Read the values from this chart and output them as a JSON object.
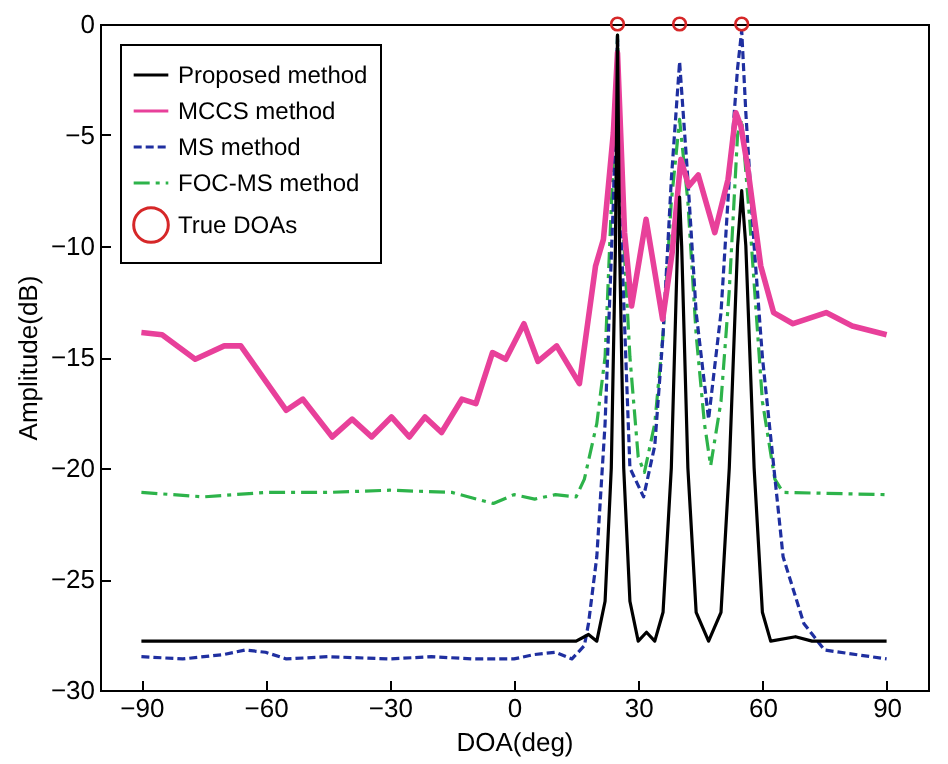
{
  "chart_data": {
    "type": "line",
    "xlabel": "DOA(deg)",
    "ylabel": "Amplitude(dB)",
    "xlim": [
      -100,
      100
    ],
    "xticks": [
      -90,
      -60,
      -30,
      0,
      30,
      60,
      90
    ],
    "ylim": [
      -30,
      0
    ],
    "yticks": [
      -30,
      -25,
      -20,
      -15,
      -10,
      -5,
      0
    ],
    "grid": false,
    "legend": "top left",
    "series": [
      {
        "name": "Proposed method",
        "color": "#000000",
        "line_style": "solid",
        "x": [
          -90,
          -60,
          -30,
          0,
          15,
          18,
          20,
          22,
          23.5,
          24.5,
          25,
          25.5,
          26.5,
          28,
          30,
          32,
          34,
          36,
          38,
          39.5,
          40,
          40.5,
          42,
          44,
          47,
          50,
          52,
          54,
          55,
          56,
          58,
          60,
          62,
          68,
          72,
          90
        ],
        "values": [
          -27.8,
          -27.8,
          -27.8,
          -27.8,
          -27.8,
          -27.5,
          -27.8,
          -26,
          -20,
          -10,
          -0.5,
          -10,
          -20,
          -26,
          -27.8,
          -27.4,
          -27.8,
          -26.5,
          -20,
          -10,
          -7.8,
          -10,
          -20,
          -26.5,
          -27.8,
          -26.5,
          -20,
          -10,
          -7.5,
          -10,
          -20,
          -26.5,
          -27.8,
          -27.6,
          -27.8,
          -27.8
        ]
      },
      {
        "name": "MCCS method",
        "color": "#e8409a",
        "line_style": "solid",
        "x": [
          -90,
          -85,
          -77,
          -70,
          -66,
          -55,
          -51,
          -43.9,
          -39.1,
          -34.4,
          -29.6,
          -25.3,
          -21.5,
          -17.5,
          -12.6,
          -9.2,
          -5.2,
          -2,
          2.4,
          5.8,
          10.3,
          15.8,
          19.7,
          21.6,
          24,
          25,
          26.7,
          28.4,
          31.9,
          35.9,
          38.2,
          40.3,
          42.2,
          44.5,
          48.5,
          51.7,
          53.6,
          54.8,
          56.4,
          59.6,
          62.7,
          67.4,
          75.4,
          81.7,
          90
        ],
        "values": [
          -13.9,
          -14,
          -15.1,
          -14.5,
          -14.5,
          -17.4,
          -16.9,
          -18.6,
          -17.8,
          -18.6,
          -17.7,
          -18.6,
          -17.7,
          -18.4,
          -16.9,
          -17.1,
          -14.8,
          -15.1,
          -13.5,
          -15.2,
          -14.5,
          -16.2,
          -10.9,
          -9.7,
          -4.9,
          -1.3,
          -9.4,
          -12.7,
          -8.8,
          -13.3,
          -10.3,
          -6.1,
          -7.3,
          -6.8,
          -9.4,
          -7,
          -4,
          -4.6,
          -6.4,
          -10.9,
          -13,
          -13.5,
          -13,
          -13.6,
          -14
        ]
      },
      {
        "name": "MS method",
        "color": "#1f2fa0",
        "line_style": "dashed",
        "x": [
          -90,
          -80,
          -70,
          -65,
          -60,
          -55,
          -45,
          -30,
          -20,
          -10,
          0,
          5,
          10,
          14,
          17,
          18,
          20,
          22,
          24,
          25,
          26,
          28,
          31.3,
          34,
          36,
          38,
          40,
          42,
          44,
          47,
          50,
          52,
          54,
          55,
          56,
          58,
          60,
          65,
          70,
          75,
          90
        ],
        "values": [
          -28.5,
          -28.6,
          -28.4,
          -28.2,
          -28.3,
          -28.6,
          -28.5,
          -28.6,
          -28.5,
          -28.6,
          -28.6,
          -28.4,
          -28.3,
          -28.6,
          -28,
          -27,
          -24,
          -18,
          -8,
          -0.5,
          -10,
          -20,
          -21.3,
          -19,
          -14,
          -7,
          -1.7,
          -7,
          -13,
          -17.8,
          -13,
          -7,
          -2,
          -0.3,
          -4,
          -10,
          -15,
          -24,
          -27,
          -28.2,
          -28.6
        ]
      },
      {
        "name": "FOC-MS method",
        "color": "#2db34a",
        "line_style": "dashdot",
        "x": [
          -90,
          -75,
          -60,
          -45,
          -30,
          -15,
          -5,
          0,
          5,
          10,
          15,
          17,
          20,
          22,
          24,
          25,
          26,
          28,
          30,
          31.5,
          34,
          36,
          38,
          40,
          42,
          44,
          46,
          47.5,
          50,
          52,
          54,
          55,
          57,
          60,
          63,
          65,
          90
        ],
        "values": [
          -21.1,
          -21.3,
          -21.1,
          -21.1,
          -21.0,
          -21.1,
          -21.6,
          -21.2,
          -21.4,
          -21.2,
          -21.3,
          -20.5,
          -18,
          -15,
          -6,
          -0.5,
          -8,
          -15,
          -19.5,
          -20.2,
          -18,
          -14,
          -8,
          -4.3,
          -8,
          -14,
          -18,
          -19.9,
          -17,
          -12,
          -5,
          -4.3,
          -9,
          -17,
          -20.5,
          -21.1,
          -21.2
        ]
      },
      {
        "name": "True DOAs",
        "color": "#d62728",
        "type": "scatter",
        "marker": "circle",
        "x": [
          25,
          40,
          55
        ],
        "values": [
          0,
          0,
          0
        ]
      }
    ]
  }
}
